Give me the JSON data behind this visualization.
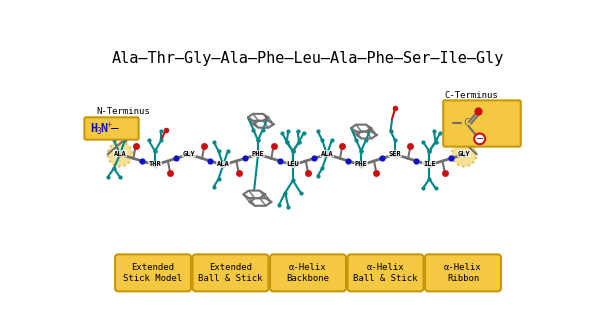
{
  "title": "Ala–Thr–Gly–Ala–Phe–Leu–Ala–Phe–Ser–Ile–Gly",
  "title_fontsize": 11,
  "background_color": "#ffffff",
  "amino_acids": [
    "ALA",
    "THR",
    "GLY",
    "ALA",
    "PHE",
    "LEU",
    "ALA",
    "PHE",
    "SER",
    "ILE",
    "GLY"
  ],
  "n_terminus_label": "N-Terminus",
  "c_terminus_label": "C-Terminus",
  "buttons": [
    {
      "label": "Extended\nStick Model"
    },
    {
      "label": "Extended\nBall & Stick"
    },
    {
      "label": "α-Helix\nBackbone"
    },
    {
      "label": "α-Helix\nBall & Stick"
    },
    {
      "label": "α-Helix\nRibbon"
    }
  ],
  "button_bg": "#f5c842",
  "button_edge": "#c8960a",
  "bond_color": "#707070",
  "carbon_color": "#707070",
  "nitrogen_color": "#1010cc",
  "oxygen_color": "#cc1010",
  "teal_color": "#008888",
  "label_color": "#000000",
  "highlight_circle_color": "#f5c842",
  "box_color": "#f5c842",
  "box_edge_color": "#c8960a"
}
